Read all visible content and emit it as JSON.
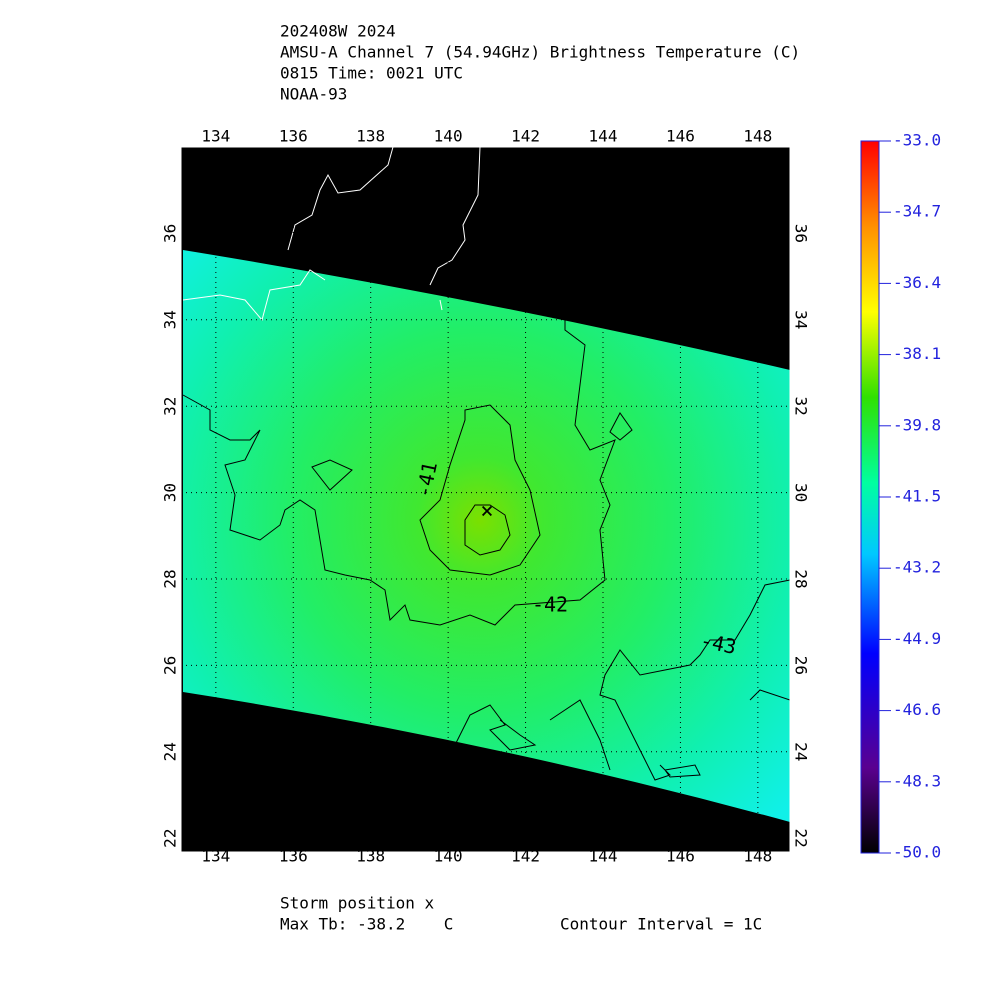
{
  "header": {
    "lines": [
      "202408W 2024",
      "AMSU-A Channel 7 (54.94GHz) Brightness Temperature (C)",
      "0815 Time: 0021 UTC",
      "NOAA-93"
    ]
  },
  "map": {
    "xlim": [
      133.1,
      148.83
    ],
    "ylim": [
      21.68,
      38
    ],
    "xticks": [
      134,
      136,
      138,
      140,
      142,
      144,
      146,
      148
    ],
    "yticks": [
      22,
      24,
      26,
      28,
      30,
      32,
      34,
      36
    ],
    "grid": true,
    "contour_labels": [
      "-41",
      "-42",
      "-43"
    ]
  },
  "colorbar": {
    "lim": [
      -50,
      -33
    ],
    "ticks": [
      {
        "value": -33,
        "label": "-33.0"
      },
      -34.7,
      -36.4,
      -38.1,
      -39.8,
      -41.5,
      -43.2,
      -44.9,
      -46.6,
      -48.3,
      {
        "value": -50,
        "label": "-50.0"
      }
    ]
  },
  "footer": {
    "storm_position": "Storm position x",
    "max_tb": "Max Tb: -38.2    C",
    "contour_interval": "Contour Interval = 1C"
  }
}
